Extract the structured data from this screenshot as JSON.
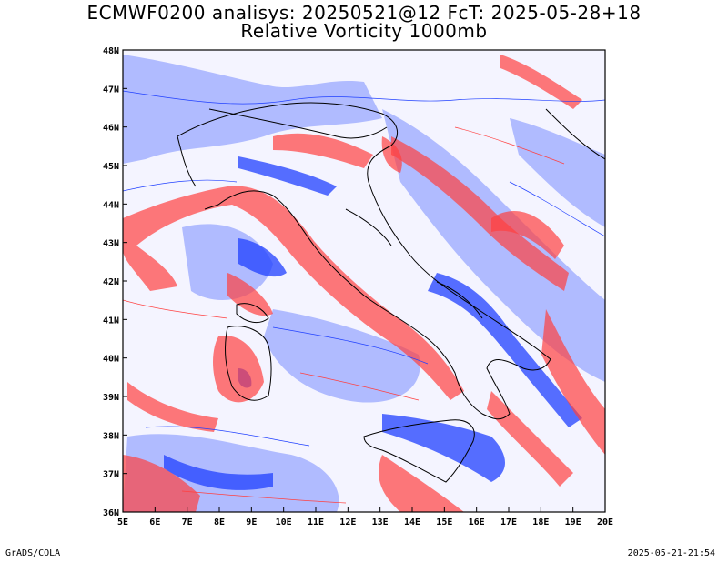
{
  "title": {
    "line1": "ECMWF0200 analisys: 20250521@12 FcT: 2025-05-28+18",
    "line2": "Relative Vorticity 1000mb"
  },
  "map": {
    "lon_labels": [
      "5E",
      "6E",
      "7E",
      "8E",
      "9E",
      "10E",
      "11E",
      "12E",
      "13E",
      "14E",
      "15E",
      "16E",
      "17E",
      "18E",
      "19E",
      "20E"
    ],
    "lat_labels": [
      "36N",
      "37N",
      "38N",
      "39N",
      "40N",
      "41N",
      "42N",
      "43N",
      "44N",
      "45N",
      "46N",
      "47N",
      "48N"
    ],
    "lon_range": [
      5,
      20
    ],
    "lat_range": [
      36,
      48
    ],
    "colors": {
      "positive_vorticity": "#ff4040",
      "negative_vorticity": "#2040ff",
      "coastline": "#000000",
      "frame": "#000000"
    }
  },
  "footer": {
    "left": "GrADS/COLA",
    "right": "2025-05-21-21:54"
  }
}
